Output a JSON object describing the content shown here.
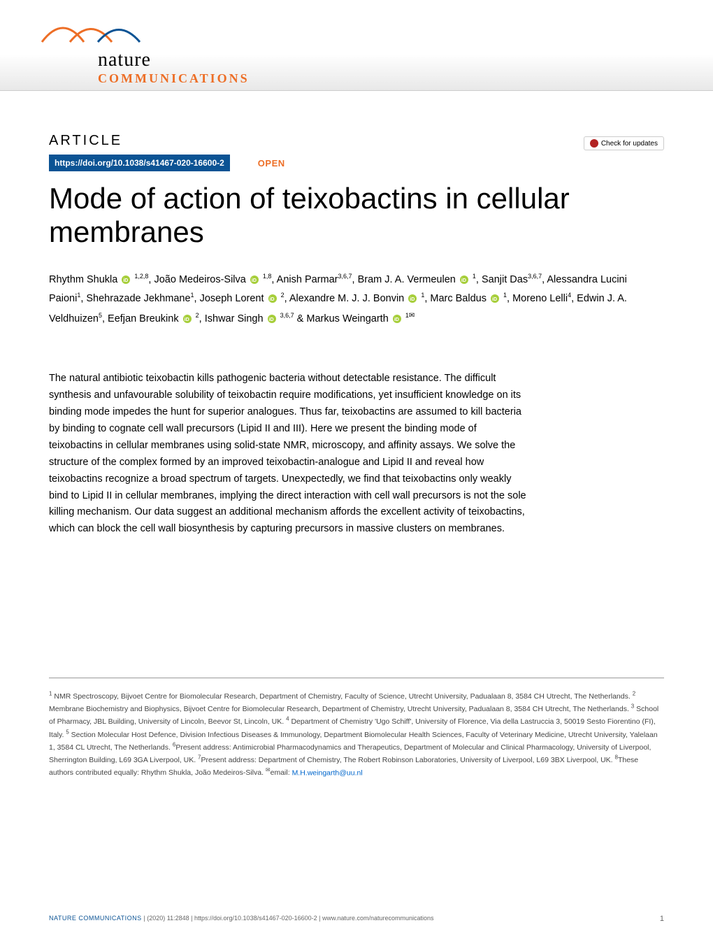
{
  "journal": {
    "name_line1": "nature",
    "name_line2": "COMMUNICATIONS",
    "logo_colors": [
      "#ed6e26",
      "#0b5394"
    ]
  },
  "article_label": "ARTICLE",
  "check_updates": "Check for updates",
  "doi": "https://doi.org/10.1038/s41467-020-16600-2",
  "open_access": "OPEN",
  "title": "Mode of action of teixobactins in cellular membranes",
  "authors_html": "Rhythm Shukla {orcid} 1,2,8, João Medeiros-Silva {orcid} 1,8, Anish Parmar3,6,7, Bram J. A. Vermeulen {orcid} 1, Sanjit Das3,6,7, Alessandra Lucini Paioni1, Shehrazade Jekhmane1, Joseph Lorent {orcid} 2, Alexandre M. J. J. Bonvin {orcid} 1, Marc Baldus {orcid} 1, Moreno Lelli4, Edwin J. A. Veldhuizen5, Eefjan Breukink {orcid} 2, Ishwar Singh {orcid} 3,6,7 & Markus Weingarth {orcid} 1✉",
  "abstract": "The natural antibiotic teixobactin kills pathogenic bacteria without detectable resistance. The difficult synthesis and unfavourable solubility of teixobactin require modifications, yet insufficient knowledge on its binding mode impedes the hunt for superior analogues. Thus far, teixobactins are assumed to kill bacteria by binding to cognate cell wall precursors (Lipid II and III). Here we present the binding mode of teixobactins in cellular membranes using solid-state NMR, microscopy, and affinity assays. We solve the structure of the complex formed by an improved teixobactin-analogue and Lipid II and reveal how teixobactins recognize a broad spectrum of targets. Unexpectedly, we find that teixobactins only weakly bind to Lipid II in cellular membranes, implying the direct interaction with cell wall precursors is not the sole killing mechanism. Our data suggest an additional mechanism affords the excellent activity of teixobactins, which can block the cell wall biosynthesis by capturing precursors in massive clusters on membranes.",
  "affiliations": "1 NMR Spectroscopy, Bijvoet Centre for Biomolecular Research, Department of Chemistry, Faculty of Science, Utrecht University, Padualaan 8, 3584 CH Utrecht, The Netherlands. 2 Membrane Biochemistry and Biophysics, Bijvoet Centre for Biomolecular Research, Department of Chemistry, Utrecht University, Padualaan 8, 3584 CH Utrecht, The Netherlands. 3 School of Pharmacy, JBL Building, University of Lincoln, Beevor St, Lincoln, UK. 4 Department of Chemistry 'Ugo Schiff', University of Florence, Via della Lastruccia 3, 50019 Sesto Fiorentino (FI), Italy. 5 Section Molecular Host Defence, Division Infectious Diseases & Immunology, Department Biomolecular Health Sciences, Faculty of Veterinary Medicine, Utrecht University, Yalelaan 1, 3584 CL Utrecht, The Netherlands. 6Present address: Antimicrobial Pharmacodynamics and Therapeutics, Department of Molecular and Clinical Pharmacology, University of Liverpool, Sherrington Building, L69 3GA Liverpool, UK. 7Present address: Department of Chemistry, The Robert Robinson Laboratories, University of Liverpool, L69 3BX Liverpool, UK. 8These authors contributed equally: Rhythm Shukla, João Medeiros-Silva. ✉email: ",
  "email": "M.H.weingarth@uu.nl",
  "footer": {
    "journal": "NATURE COMMUNICATIONS",
    "citation": "|      (2020) 11:2848 | https://doi.org/10.1038/s41467-020-16600-2 | www.nature.com/naturecommunications",
    "page": "1"
  },
  "colors": {
    "doi_bg": "#0b5394",
    "open_color": "#ed6e26",
    "orcid": "#a6ce39",
    "link": "#0066cc"
  }
}
